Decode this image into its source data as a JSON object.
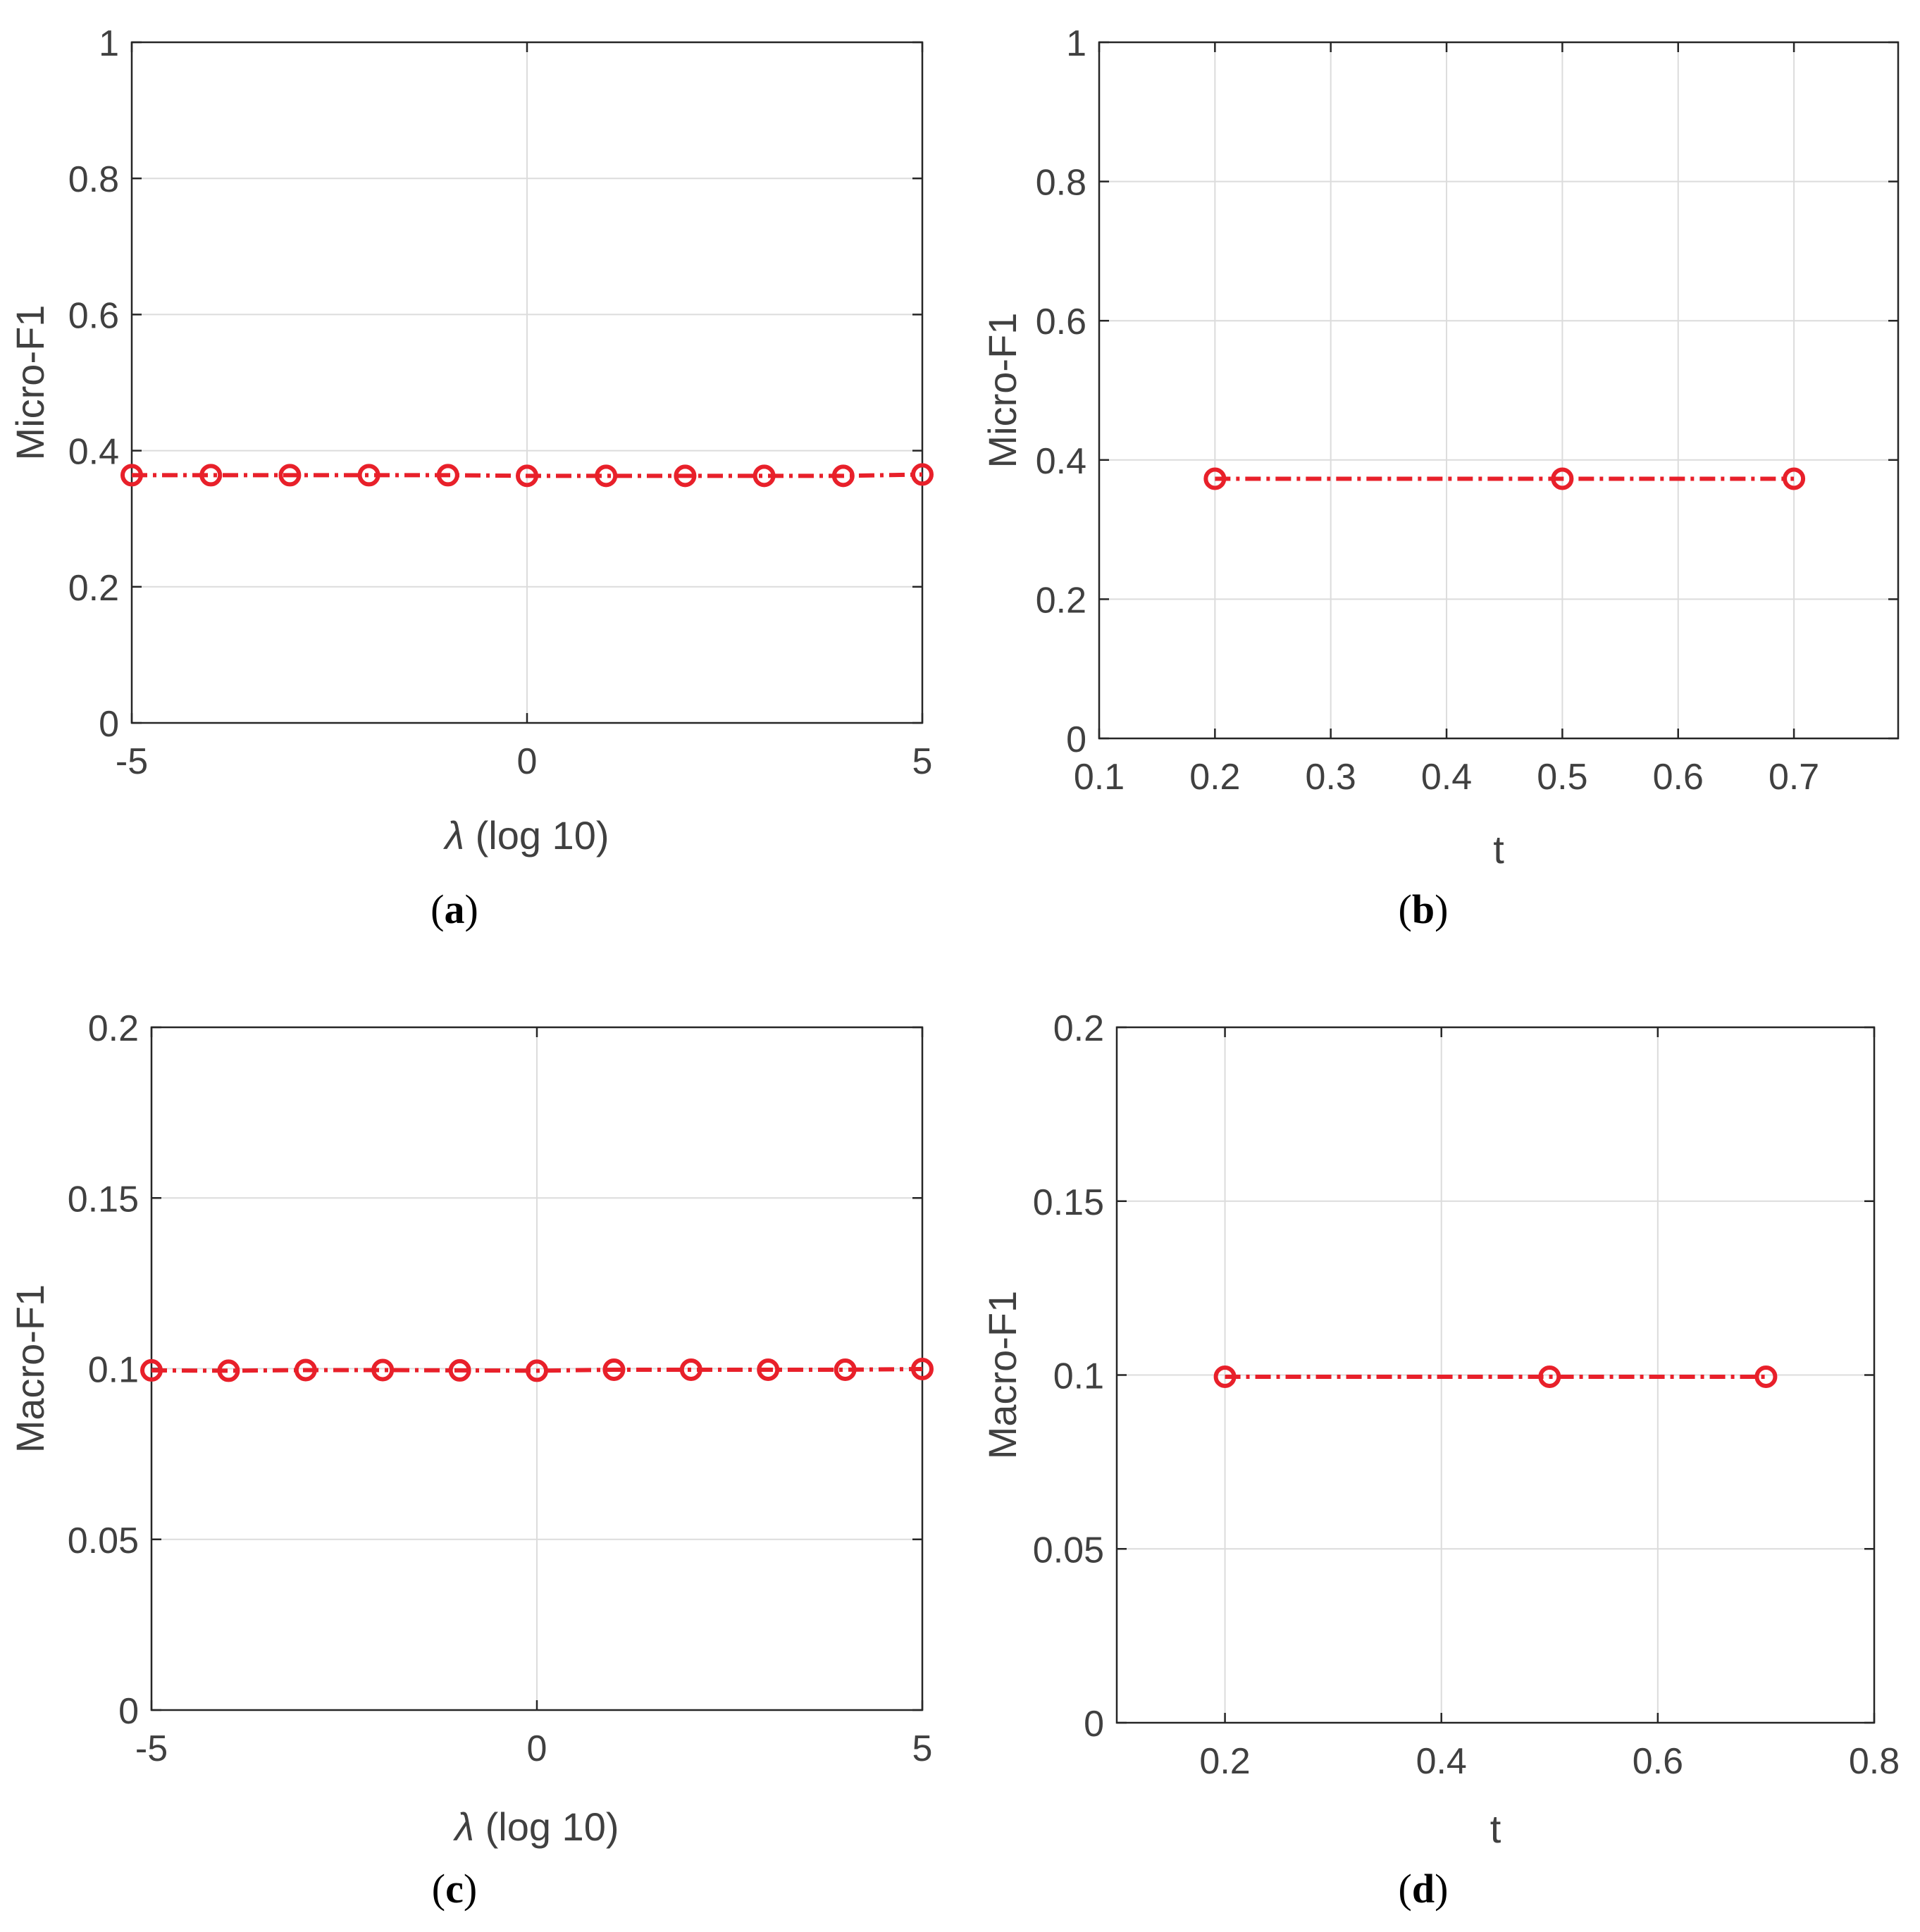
{
  "colors": {
    "series": "#e8202a",
    "grid": "#dcdcdc",
    "axis": "#262626",
    "text": "#404040"
  },
  "chart_data": [
    {
      "type": "line",
      "caption_letter": "a",
      "xlabel_symbol": "λ",
      "xlabel": " (log 10)",
      "ylabel": "Micro-F1",
      "xlim": [
        -5,
        5
      ],
      "ylim": [
        0,
        1
      ],
      "xticks": [
        -5,
        0,
        5
      ],
      "xtick_labels": [
        "-5",
        "0",
        "5"
      ],
      "yticks": [
        0,
        0.2,
        0.4,
        0.6,
        0.8,
        1
      ],
      "ytick_labels": [
        "0",
        "0.2",
        "0.4",
        "0.6",
        "0.8",
        "1"
      ],
      "grid": true,
      "series": [
        {
          "x": [
            -5,
            -4,
            -3,
            -2,
            -1,
            0,
            1,
            2,
            3,
            4,
            5
          ],
          "values": [
            0.364,
            0.364,
            0.364,
            0.364,
            0.364,
            0.363,
            0.363,
            0.363,
            0.363,
            0.363,
            0.365
          ]
        }
      ]
    },
    {
      "type": "line",
      "caption_letter": "b",
      "xlabel_symbol": "",
      "xlabel": "t",
      "ylabel": "Micro-F1",
      "xlim": [
        0.1,
        0.79
      ],
      "ylim": [
        0,
        1
      ],
      "xticks": [
        0.1,
        0.2,
        0.3,
        0.4,
        0.5,
        0.6,
        0.7
      ],
      "xtick_labels": [
        "0.1",
        "0.2",
        "0.3",
        "0.4",
        "0.5",
        "0.6",
        "0.7"
      ],
      "yticks": [
        0,
        0.2,
        0.4,
        0.6,
        0.8,
        1
      ],
      "ytick_labels": [
        "0",
        "0.2",
        "0.4",
        "0.6",
        "0.8",
        "1"
      ],
      "grid": true,
      "series": [
        {
          "x": [
            0.2,
            0.5,
            0.7
          ],
          "values": [
            0.373,
            0.373,
            0.373
          ]
        }
      ]
    },
    {
      "type": "line",
      "caption_letter": "c",
      "xlabel_symbol": "λ",
      "xlabel": " (log 10)",
      "ylabel": "Macro-F1",
      "xlim": [
        -5,
        5
      ],
      "ylim": [
        0,
        0.2
      ],
      "xticks": [
        -5,
        0,
        5
      ],
      "xtick_labels": [
        "-5",
        "0",
        "5"
      ],
      "yticks": [
        0,
        0.05,
        0.1,
        0.15,
        0.2
      ],
      "ytick_labels": [
        "0",
        "0.05",
        "0.1",
        "0.15",
        "0.2"
      ],
      "grid": true,
      "series": [
        {
          "x": [
            -5,
            -4,
            -3,
            -2,
            -1,
            0,
            1,
            2,
            3,
            4,
            5
          ],
          "values": [
            0.0995,
            0.0994,
            0.0996,
            0.0996,
            0.0995,
            0.0994,
            0.0997,
            0.0997,
            0.0997,
            0.0997,
            0.0999
          ]
        }
      ]
    },
    {
      "type": "line",
      "caption_letter": "d",
      "xlabel_symbol": "",
      "xlabel": "t",
      "ylabel": "Macro-F1",
      "xlim": [
        0.1,
        0.8
      ],
      "ylim": [
        0,
        0.2
      ],
      "xticks": [
        0.2,
        0.4,
        0.6,
        0.8
      ],
      "xtick_labels": [
        "0.2",
        "0.4",
        "0.6",
        "0.8"
      ],
      "yticks": [
        0,
        0.05,
        0.1,
        0.15,
        0.2
      ],
      "ytick_labels": [
        "0",
        "0.05",
        "0.1",
        "0.15",
        "0.2"
      ],
      "grid": true,
      "series": [
        {
          "x": [
            0.2,
            0.5,
            0.7
          ],
          "values": [
            0.0995,
            0.0995,
            0.0995
          ]
        }
      ]
    }
  ]
}
